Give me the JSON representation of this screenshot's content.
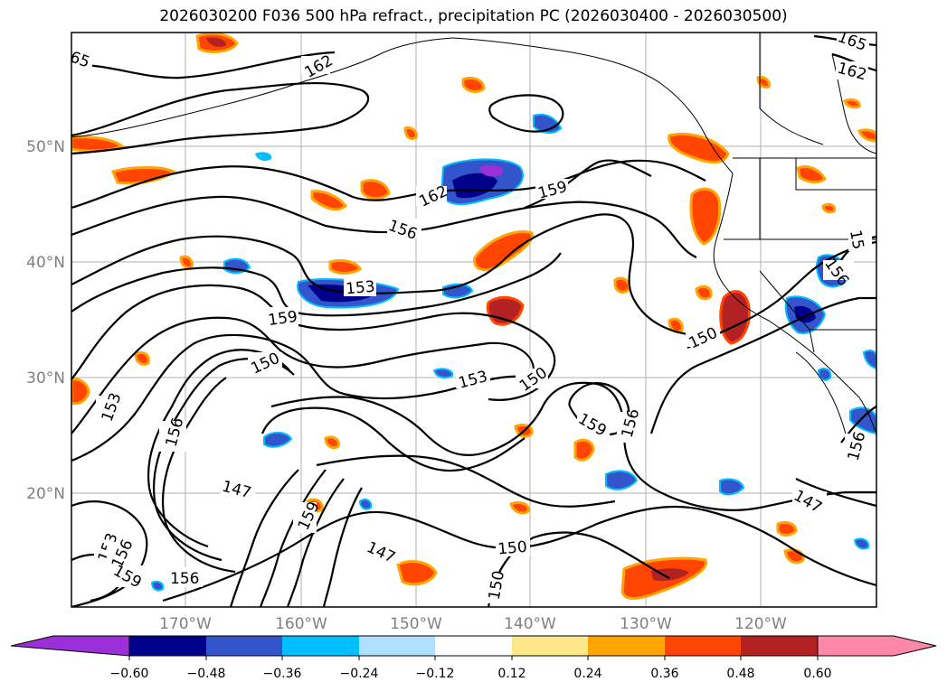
{
  "title": "2026030200 F036 500 hPa refract., precipitation PC (2026030400 - 2026030500)",
  "lat_labels": [
    "50°N",
    "40°N",
    "30°N",
    "20°N"
  ],
  "lon_labels": [
    "170°W",
    "160°W",
    "150°W",
    "140°W",
    "130°W",
    "120°W"
  ],
  "colorbar": {
    "tick_labels": [
      "−0.60",
      "−0.48",
      "−0.36",
      "−0.24",
      "−0.12",
      "0.12",
      "0.24",
      "0.36",
      "0.48",
      "0.60"
    ],
    "colors": [
      "#9b30d9",
      "#00008b",
      "#3355cc",
      "#00bfff",
      "#b0e0ff",
      "#ffffff",
      "#ffe88c",
      "#ffa500",
      "#ff4500",
      "#b22222",
      "#ff88aa"
    ]
  },
  "contour_labels": [
    "65",
    "162",
    "165",
    "162",
    "162",
    "159",
    "156",
    "156",
    "153",
    "159",
    "150",
    "153",
    "150",
    "150",
    "153",
    "156",
    "159",
    "156",
    "147",
    "159",
    "147",
    "150",
    "150",
    "153",
    "156",
    "159",
    "156",
    "147",
    "156",
    "15"
  ]
}
